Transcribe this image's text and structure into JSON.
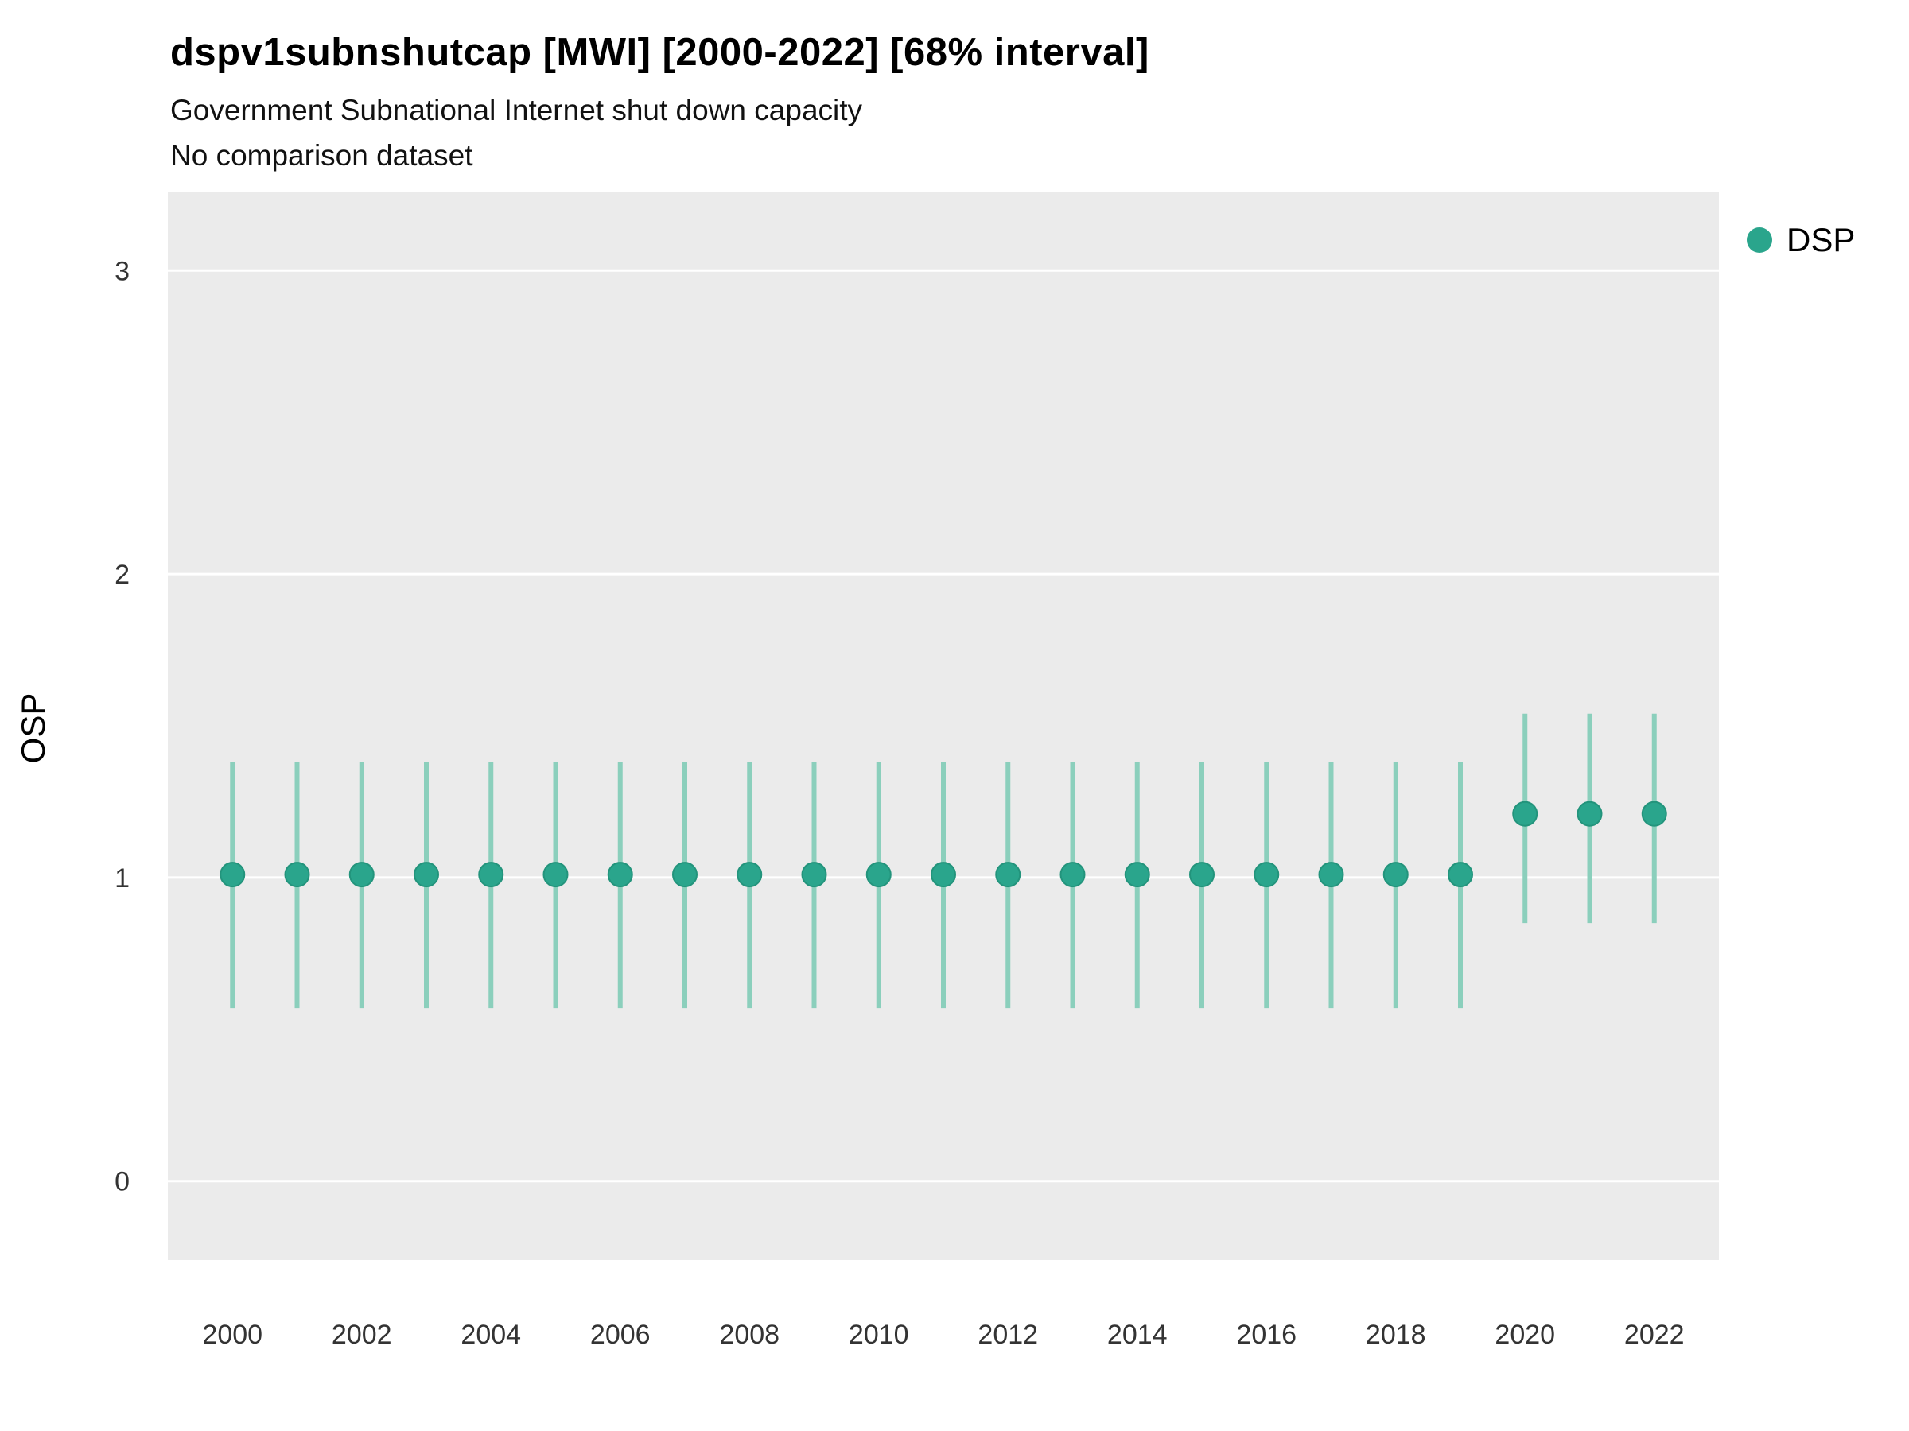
{
  "header": {
    "title": "dspv1subnshutcap [MWI] [2000-2022] [68% interval]",
    "subtitle": "Government Subnational Internet shut down capacity",
    "comparison_note": "No comparison dataset"
  },
  "legend": {
    "items": [
      {
        "label": "DSP",
        "color": "#2AA58C"
      }
    ],
    "position": "right"
  },
  "chart_data": {
    "type": "scatter",
    "title": "dspv1subnshutcap [MWI] [2000-2022] [68% interval]",
    "subtitle": "Government Subnational Internet shut down capacity",
    "note": "No comparison dataset",
    "xlabel": "",
    "ylabel": "OSP",
    "x": [
      2000,
      2001,
      2002,
      2003,
      2004,
      2005,
      2006,
      2007,
      2008,
      2009,
      2010,
      2011,
      2012,
      2013,
      2014,
      2015,
      2016,
      2017,
      2018,
      2019,
      2020,
      2021,
      2022
    ],
    "series": [
      {
        "name": "DSP",
        "values": [
          1.01,
          1.01,
          1.01,
          1.01,
          1.01,
          1.01,
          1.01,
          1.01,
          1.01,
          1.01,
          1.01,
          1.01,
          1.01,
          1.01,
          1.01,
          1.01,
          1.01,
          1.01,
          1.01,
          1.01,
          1.21,
          1.21,
          1.21
        ],
        "lower": [
          0.57,
          0.57,
          0.57,
          0.57,
          0.57,
          0.57,
          0.57,
          0.57,
          0.57,
          0.57,
          0.57,
          0.57,
          0.57,
          0.57,
          0.57,
          0.57,
          0.57,
          0.57,
          0.57,
          0.57,
          0.85,
          0.85,
          0.85
        ],
        "upper": [
          1.38,
          1.38,
          1.38,
          1.38,
          1.38,
          1.38,
          1.38,
          1.38,
          1.38,
          1.38,
          1.38,
          1.38,
          1.38,
          1.38,
          1.38,
          1.38,
          1.38,
          1.38,
          1.38,
          1.38,
          1.54,
          1.54,
          1.54
        ]
      }
    ],
    "interval_level": "68%",
    "xlim": [
      1999.0,
      2023.0
    ],
    "ylim": [
      -0.26,
      3.26
    ],
    "xticks": [
      2000,
      2002,
      2004,
      2006,
      2008,
      2010,
      2012,
      2014,
      2016,
      2018,
      2020,
      2022
    ],
    "yticks": [
      0,
      1,
      2,
      3
    ],
    "grid": "horizontal-major-only",
    "legend_position": "right",
    "colors": {
      "point": "#2AA58C",
      "point_stroke": "#23947C",
      "interval": "#8BCFBC",
      "panel_background": "#EBEBEB",
      "gridline": "#FFFFFF",
      "tick_text": "#333333"
    }
  }
}
